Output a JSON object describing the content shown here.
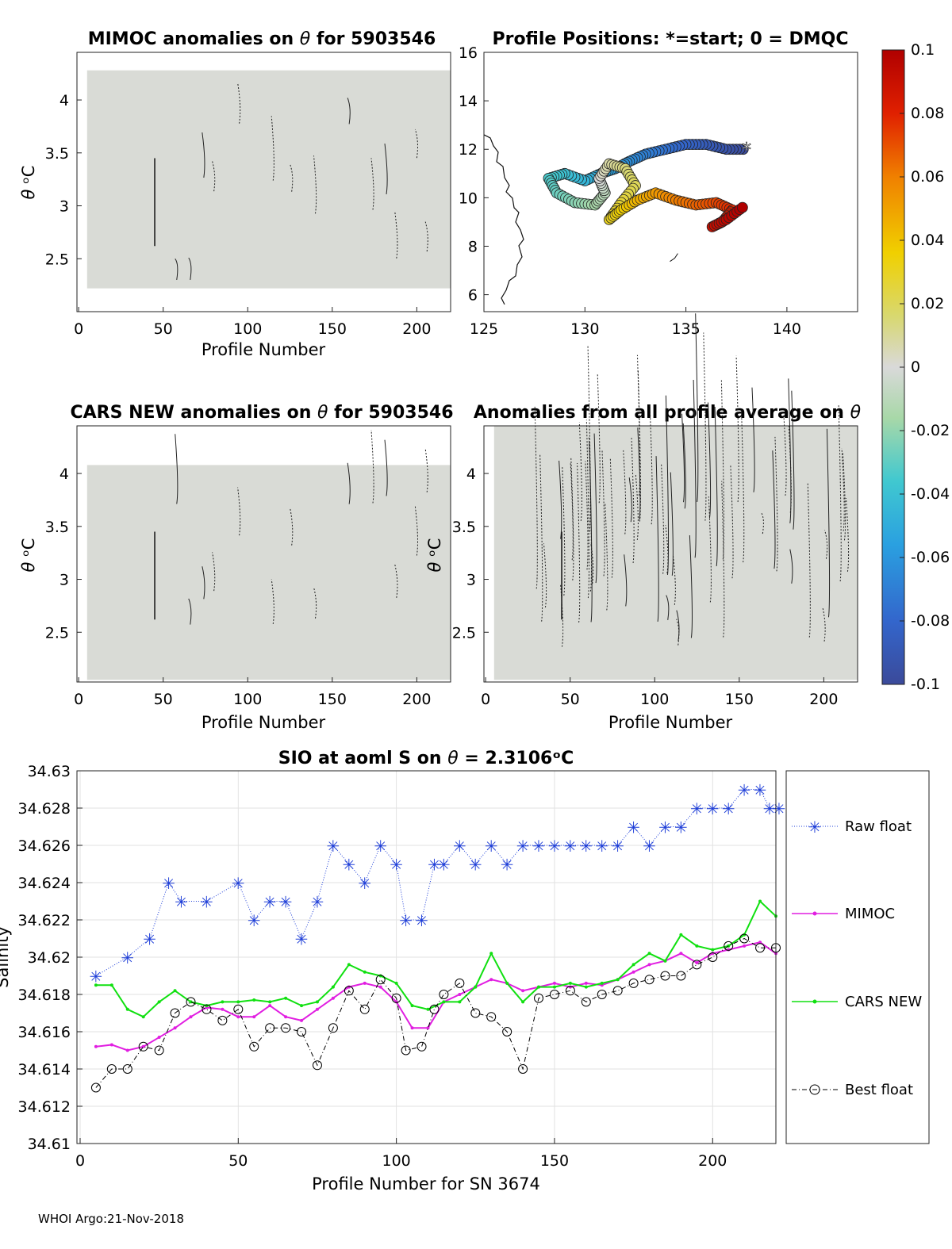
{
  "footer": "WHOI Argo:21-Nov-2018",
  "panels": {
    "mimoc": {
      "title_pre": "MIMOC anomalies on ",
      "title_sym": "θ",
      "title_post": "  for 5903546",
      "xlabel": "Profile Number",
      "ylabel_sym": "θ",
      "ylabel_unit": " ᵒC",
      "xticks": [
        0,
        50,
        100,
        150,
        200
      ],
      "yticks": [
        2.5,
        3,
        3.5,
        4
      ],
      "xlim": [
        -1,
        220
      ],
      "ylim": [
        2.0,
        4.45
      ],
      "fill_x": [
        5,
        220
      ],
      "fill_y": [
        2.22,
        4.28
      ]
    },
    "map": {
      "title": "Profile Positions: *=start; 0 = DMQC",
      "xticks": [
        125,
        130,
        135,
        140
      ],
      "yticks": [
        6,
        8,
        10,
        12,
        14,
        16
      ],
      "xlim": [
        125,
        143.5
      ],
      "ylim": [
        5.3,
        16
      ],
      "track_lon": [
        138.0,
        137.0,
        136.0,
        135.0,
        134.0,
        133.0,
        132.2,
        131.5,
        130.8,
        130.0,
        129.0,
        128.2,
        128.6,
        129.5,
        130.5,
        131.0,
        130.7,
        131.2,
        132.0,
        132.5,
        131.8,
        131.2,
        131.8,
        132.6,
        133.5,
        134.5,
        135.5,
        136.5,
        137.3,
        136.8,
        136.3,
        137.0,
        137.8
      ],
      "track_lat": [
        12.0,
        12.0,
        12.2,
        12.2,
        12.0,
        11.8,
        11.5,
        11.2,
        11.0,
        10.7,
        11.0,
        10.8,
        10.2,
        9.8,
        9.7,
        10.2,
        10.8,
        11.4,
        11.2,
        10.5,
        9.8,
        9.1,
        9.5,
        9.9,
        10.2,
        9.9,
        9.7,
        9.8,
        9.5,
        9.0,
        8.8,
        9.1,
        9.6
      ],
      "track_t": [
        -0.1,
        -0.094,
        -0.088,
        -0.082,
        -0.076,
        -0.07,
        -0.064,
        -0.058,
        -0.052,
        -0.046,
        -0.04,
        -0.034,
        -0.028,
        -0.022,
        -0.016,
        -0.01,
        0.0,
        0.008,
        0.014,
        0.02,
        0.026,
        0.03,
        0.036,
        0.044,
        0.052,
        0.06,
        0.066,
        0.072,
        0.078,
        0.084,
        0.09,
        0.095,
        0.1
      ],
      "start_marker": "*"
    },
    "cars": {
      "title_pre": "CARS NEW anomalies on ",
      "title_sym": "θ",
      "title_post": " for 5903546",
      "xlabel": "Profile Number",
      "ylabel_sym": "θ",
      "ylabel_unit": " ᵒC",
      "xticks": [
        0,
        50,
        100,
        150,
        200
      ],
      "yticks": [
        2.5,
        3,
        3.5,
        4
      ],
      "xlim": [
        -1,
        220
      ],
      "ylim": [
        2.03,
        4.45
      ],
      "fill_x": [
        5,
        220
      ],
      "fill_y": [
        2.05,
        4.08
      ]
    },
    "avg": {
      "title_pre": "Anomalies from all profile average on ",
      "title_sym": "θ",
      "xlabel": "Profile Number",
      "ylabel_sym": "θ",
      "ylabel_unit": " ᵒC",
      "xticks": [
        0,
        50,
        100,
        150,
        200
      ],
      "yticks": [
        2.5,
        3,
        3.5,
        4
      ],
      "xlim": [
        -1,
        220
      ],
      "ylim": [
        2.03,
        4.45
      ],
      "fill_x": [
        5,
        220
      ],
      "fill_y": [
        2.05,
        4.45
      ]
    }
  },
  "colorbar": {
    "ticks": [
      "0.1",
      "0.08",
      "0.06",
      "0.04",
      "0.02",
      "0",
      "-0.02",
      "-0.04",
      "-0.06",
      "-0.08",
      "-0.1"
    ],
    "range": [
      -0.1,
      0.1
    ]
  },
  "chart_data": {
    "type": "line",
    "title_pre": "SIO at aoml S on ",
    "title_sym": "θ",
    "title_post": " = 2.3106ᵒC",
    "xlabel": "Profile Number for SN 3674",
    "ylabel": "Salinity",
    "xlim": [
      -1,
      220
    ],
    "ylim": [
      34.61,
      34.63
    ],
    "xticks": [
      0,
      50,
      100,
      150,
      200
    ],
    "yticks": [
      "34.61",
      "34.612",
      "34.614",
      "34.616",
      "34.618",
      "34.62",
      "34.622",
      "34.624",
      "34.626",
      "34.628",
      "34.63"
    ],
    "series": [
      {
        "name": "Raw float",
        "color": "#1f3fd8",
        "x": [
          5,
          15,
          22,
          28,
          32,
          40,
          50,
          55,
          60,
          65,
          70,
          75,
          80,
          85,
          90,
          95,
          100,
          103,
          108,
          112,
          115,
          120,
          125,
          130,
          135,
          140,
          145,
          150,
          155,
          160,
          165,
          170,
          175,
          180,
          185,
          190,
          195,
          200,
          205,
          210,
          215,
          218,
          221
        ],
        "values": [
          34.619,
          34.62,
          34.621,
          34.624,
          34.623,
          34.623,
          34.624,
          34.622,
          34.623,
          34.623,
          34.621,
          34.623,
          34.626,
          34.625,
          34.624,
          34.626,
          34.625,
          34.622,
          34.622,
          34.625,
          34.625,
          34.626,
          34.625,
          34.626,
          34.625,
          34.626,
          34.626,
          34.626,
          34.626,
          34.626,
          34.626,
          34.626,
          34.627,
          34.626,
          34.627,
          34.627,
          34.628,
          34.628,
          34.628,
          34.629,
          34.629,
          34.628,
          34.628
        ]
      },
      {
        "name": "MIMOC",
        "color": "#e11ee1",
        "x": [
          5,
          10,
          15,
          20,
          25,
          30,
          35,
          40,
          45,
          50,
          55,
          60,
          65,
          70,
          75,
          80,
          85,
          90,
          95,
          100,
          105,
          110,
          115,
          120,
          125,
          130,
          135,
          140,
          145,
          150,
          155,
          160,
          165,
          170,
          175,
          180,
          185,
          190,
          195,
          200,
          205,
          210,
          215,
          220
        ],
        "values": [
          34.6152,
          34.6153,
          34.615,
          34.6152,
          34.6157,
          34.6162,
          34.6168,
          34.6173,
          34.6172,
          34.6168,
          34.6168,
          34.6174,
          34.6168,
          34.6166,
          34.6172,
          34.6178,
          34.6184,
          34.6186,
          34.6184,
          34.6176,
          34.6162,
          34.6162,
          34.6176,
          34.618,
          34.6184,
          34.6188,
          34.6186,
          34.6182,
          34.6184,
          34.6186,
          34.6184,
          34.6186,
          34.6185,
          34.6188,
          34.6192,
          34.6196,
          34.6198,
          34.6202,
          34.6197,
          34.6202,
          34.6204,
          34.6206,
          34.6208,
          34.6202
        ]
      },
      {
        "name": "CARS NEW",
        "color": "#10e010",
        "x": [
          5,
          10,
          15,
          20,
          25,
          30,
          35,
          40,
          45,
          50,
          55,
          60,
          65,
          70,
          75,
          80,
          85,
          90,
          95,
          100,
          105,
          110,
          115,
          120,
          125,
          130,
          135,
          140,
          145,
          150,
          155,
          160,
          165,
          170,
          175,
          180,
          185,
          190,
          195,
          200,
          205,
          210,
          215,
          220
        ],
        "values": [
          34.6185,
          34.6185,
          34.6172,
          34.6168,
          34.6176,
          34.6182,
          34.6176,
          34.6174,
          34.6176,
          34.6176,
          34.6177,
          34.6176,
          34.6178,
          34.6174,
          34.6176,
          34.6184,
          34.6196,
          34.6192,
          34.619,
          34.6186,
          34.6174,
          34.6172,
          34.6176,
          34.6176,
          34.6184,
          34.6202,
          34.6186,
          34.6176,
          34.6184,
          34.6184,
          34.6186,
          34.6184,
          34.6186,
          34.6188,
          34.6196,
          34.6202,
          34.6198,
          34.6212,
          34.6206,
          34.6204,
          34.6206,
          34.6212,
          34.623,
          34.6222
        ]
      },
      {
        "name": "Best float",
        "color": "#000000",
        "x": [
          5,
          10,
          15,
          20,
          25,
          30,
          35,
          40,
          45,
          50,
          55,
          60,
          65,
          70,
          75,
          80,
          85,
          90,
          95,
          100,
          103,
          108,
          112,
          115,
          120,
          125,
          130,
          135,
          140,
          145,
          150,
          155,
          160,
          165,
          170,
          175,
          180,
          185,
          190,
          195,
          200,
          205,
          210,
          215,
          220
        ],
        "values": [
          34.613,
          34.614,
          34.614,
          34.6152,
          34.615,
          34.617,
          34.6176,
          34.6172,
          34.6166,
          34.6172,
          34.6152,
          34.6162,
          34.6162,
          34.616,
          34.6142,
          34.6162,
          34.6182,
          34.6172,
          34.6188,
          34.6178,
          34.615,
          34.6152,
          34.6172,
          34.618,
          34.6186,
          34.617,
          34.6168,
          34.616,
          34.614,
          34.6178,
          34.618,
          34.6182,
          34.6176,
          34.618,
          34.6182,
          34.6186,
          34.6188,
          34.619,
          34.619,
          34.6196,
          34.62,
          34.6206,
          34.621,
          34.6205,
          34.6205
        ]
      }
    ]
  }
}
